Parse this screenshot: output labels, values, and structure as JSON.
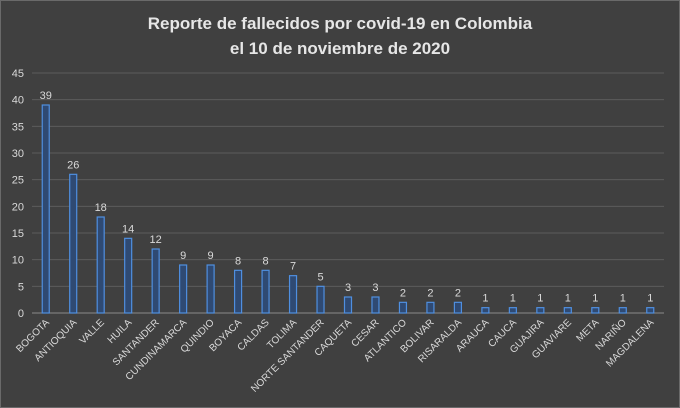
{
  "chart_data": {
    "type": "bar",
    "title": "Reporte de fallecidos por covid-19 en Colombia",
    "subtitle": "el 10 de noviembre de 2020",
    "categories": [
      "BOGOTA",
      "ANTIOQUIA",
      "VALLE",
      "HUILA",
      "SANTANDER",
      "CUNDINAMARCA",
      "QUINDIO",
      "BOYACA",
      "CALDAS",
      "TOLIMA",
      "NORTE SANTANDER",
      "CAQUETA",
      "CESAR",
      "ATLANTICO",
      "BOLIVAR",
      "RISARALDA",
      "ARAUCA",
      "CAUCA",
      "GUAJIRA",
      "GUAVIARE",
      "META",
      "NARIÑO",
      "MAGDALENA"
    ],
    "values": [
      39,
      26,
      18,
      14,
      12,
      9,
      9,
      8,
      8,
      7,
      5,
      3,
      3,
      2,
      2,
      2,
      1,
      1,
      1,
      1,
      1,
      1,
      1
    ],
    "ylim": [
      0,
      45
    ],
    "yticks": [
      0,
      5,
      10,
      15,
      20,
      25,
      30,
      35,
      40,
      45
    ],
    "grid": true,
    "bar_color": "#2f4a73",
    "bar_border": "#4f8fe0",
    "data_labels": true
  }
}
